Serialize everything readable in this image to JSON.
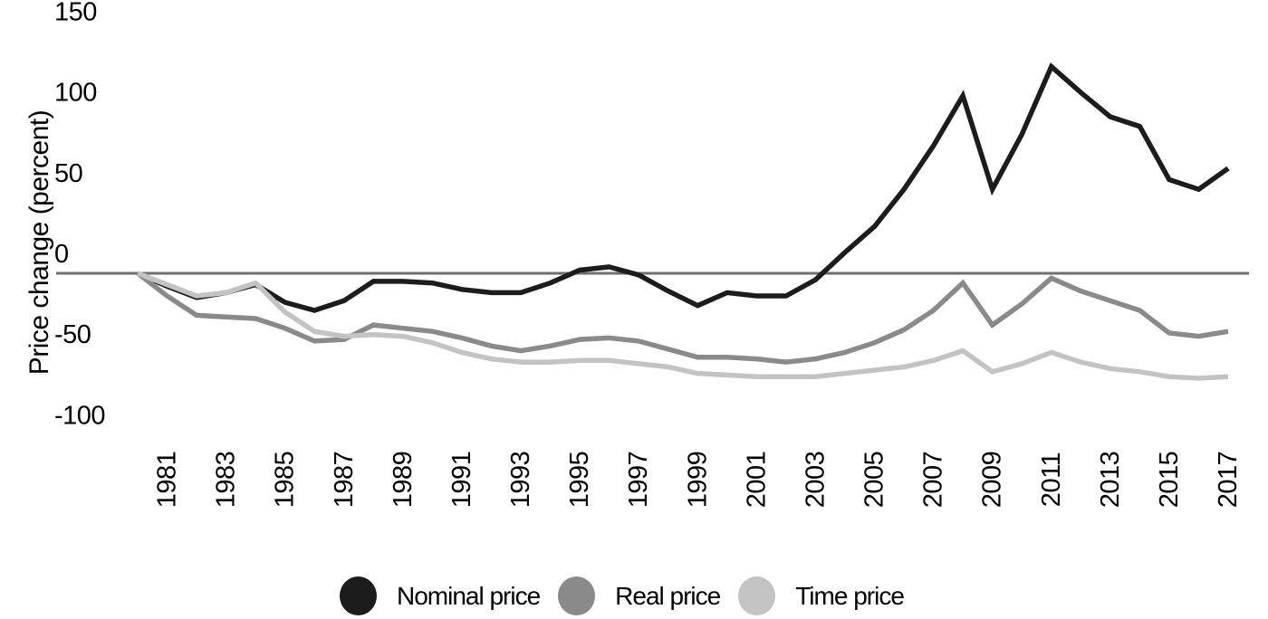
{
  "chart_data": {
    "type": "line",
    "title": "",
    "ylabel": "Price change (percent)",
    "xlabel": "",
    "x": [
      1980,
      1981,
      1982,
      1983,
      1984,
      1985,
      1986,
      1987,
      1988,
      1989,
      1990,
      1991,
      1992,
      1993,
      1994,
      1995,
      1996,
      1997,
      1998,
      1999,
      2000,
      2001,
      2002,
      2003,
      2004,
      2005,
      2006,
      2007,
      2008,
      2009,
      2010,
      2011,
      2012,
      2013,
      2014,
      2015,
      2016,
      2017
    ],
    "series": [
      {
        "name": "Nominal price",
        "color": "#1c1c1c",
        "values": [
          0,
          -8,
          -15,
          -12,
          -7,
          -18,
          -23,
          -17,
          -5,
          -5,
          -6,
          -10,
          -12,
          -12,
          -6,
          2,
          4,
          -1,
          -11,
          -20,
          -12,
          -14,
          -14,
          -4,
          13,
          29,
          52,
          79,
          110,
          52,
          86,
          128,
          112,
          97,
          91,
          58,
          52,
          65
        ]
      },
      {
        "name": "Real price",
        "color": "#8a8a8a",
        "values": [
          0,
          -14,
          -26,
          -27,
          -28,
          -34,
          -42,
          -41,
          -32,
          -34,
          -36,
          -40,
          -45,
          -48,
          -45,
          -41,
          -40,
          -42,
          -47,
          -52,
          -52,
          -53,
          -55,
          -53,
          -49,
          -43,
          -35,
          -23,
          -6,
          -32,
          -19,
          -3,
          -11,
          -17,
          -23,
          -37,
          -39,
          -36
        ]
      },
      {
        "name": "Time price",
        "color": "#c3c3c3",
        "values": [
          0,
          -7,
          -14,
          -12,
          -6,
          -24,
          -36,
          -39,
          -38,
          -39,
          -43,
          -49,
          -53,
          -55,
          -55,
          -54,
          -54,
          -56,
          -58,
          -62,
          -63,
          -64,
          -64,
          -64,
          -62,
          -60,
          -58,
          -54,
          -48,
          -61,
          -56,
          -49,
          -55,
          -59,
          -61,
          -64,
          -65,
          -64
        ]
      }
    ],
    "y_ticks": [
      150,
      100,
      50,
      0,
      -50,
      -100
    ],
    "x_tick_labels": [
      "1981",
      "1983",
      "1985",
      "1987",
      "1989",
      "1991",
      "1993",
      "1995",
      "1997",
      "1999",
      "2001",
      "2003",
      "2005",
      "2007",
      "2009",
      "2011",
      "2013",
      "2015",
      "2017"
    ],
    "ylim": [
      -100,
      150
    ],
    "xlim": [
      1980,
      2017
    ],
    "grid": false,
    "zero_line": true,
    "zero_line_color": "#6f6f6f",
    "legend_position": "bottom"
  },
  "legend": {
    "items": [
      {
        "label": "Nominal price",
        "color": "#1c1c1c"
      },
      {
        "label": "Real price",
        "color": "#8a8a8a"
      },
      {
        "label": "Time price",
        "color": "#c3c3c3"
      }
    ]
  }
}
